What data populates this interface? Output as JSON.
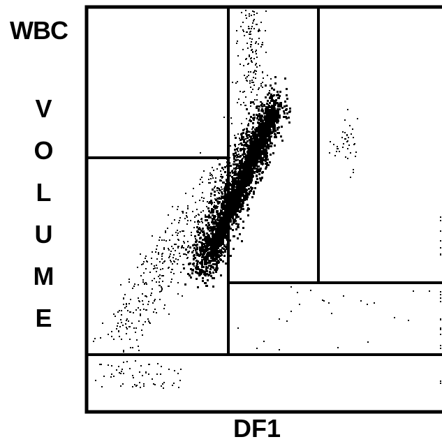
{
  "header": {
    "title": "WBC"
  },
  "y_axis_label": "VOLUME",
  "x_axis_label": "DF1"
}
